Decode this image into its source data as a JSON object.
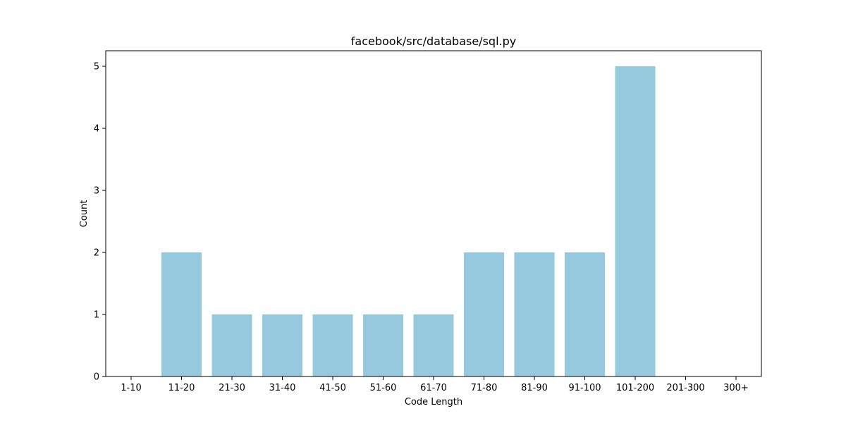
{
  "chart_data": {
    "type": "bar",
    "title": "facebook/src/database/sql.py",
    "xlabel": "Code Length",
    "ylabel": "Count",
    "categories": [
      "1-10",
      "11-20",
      "21-30",
      "31-40",
      "41-50",
      "51-60",
      "61-70",
      "71-80",
      "81-90",
      "91-100",
      "101-200",
      "201-300",
      "300+"
    ],
    "values": [
      0,
      2,
      1,
      1,
      1,
      1,
      1,
      2,
      2,
      2,
      5,
      0,
      0
    ],
    "ylim": [
      0,
      5.25
    ],
    "yticks": [
      0,
      1,
      2,
      3,
      4,
      5
    ],
    "bar_color": "#96c9dd",
    "grid": false,
    "legend": "none"
  }
}
